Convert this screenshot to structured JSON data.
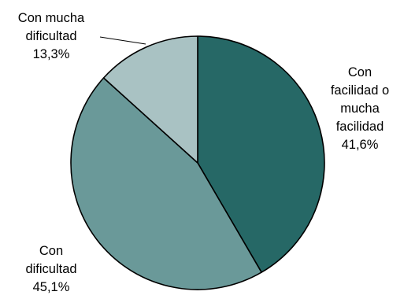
{
  "chart_data": {
    "type": "pie",
    "start_angle_deg": 0,
    "direction": "clockwise",
    "slices": [
      {
        "label_lines": [
          "Con",
          "facilidad o",
          "mucha",
          "facilidad"
        ],
        "value": 41.6,
        "value_label": "41,6%",
        "color": "#266866"
      },
      {
        "label_lines": [
          "Con",
          "dificultad"
        ],
        "value": 45.1,
        "value_label": "45,1%",
        "color": "#6A9999"
      },
      {
        "label_lines": [
          "Con mucha",
          "dificultad"
        ],
        "value": 13.3,
        "value_label": "13,3%",
        "color": "#A9C2C3"
      }
    ],
    "legend": "none",
    "labels": "outside"
  }
}
